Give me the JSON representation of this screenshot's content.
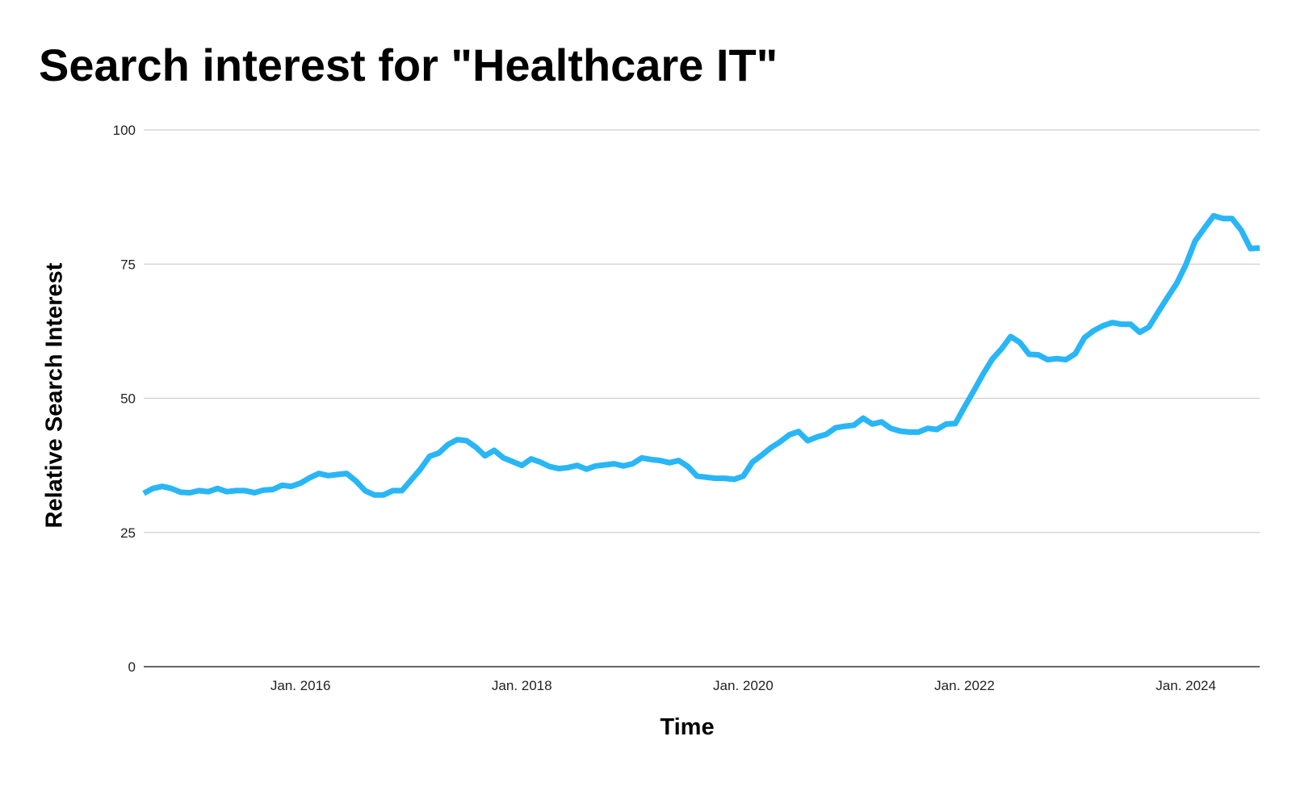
{
  "chart_data": {
    "type": "line",
    "title": "Search interest for \"Healthcare IT\"",
    "xlabel": "Time",
    "ylabel": "Relative Search Interest",
    "ylim": [
      0,
      100
    ],
    "yticks": [
      0,
      25,
      50,
      75,
      100
    ],
    "xlim": [
      "2014-08",
      "2024-09"
    ],
    "xticks": [
      {
        "date": "2016-01",
        "label": "Jan. 2016"
      },
      {
        "date": "2018-01",
        "label": "Jan. 2018"
      },
      {
        "date": "2020-01",
        "label": "Jan. 2020"
      },
      {
        "date": "2022-01",
        "label": "Jan. 2022"
      },
      {
        "date": "2024-01",
        "label": "Jan. 2024"
      }
    ],
    "grid": true,
    "color": "#29b6f6",
    "series": [
      {
        "x": [
          "2014-08",
          "2014-09",
          "2014-10",
          "2014-11",
          "2014-12",
          "2015-01",
          "2015-02",
          "2015-03",
          "2015-04",
          "2015-05",
          "2015-06",
          "2015-07",
          "2015-08",
          "2015-09",
          "2015-10",
          "2015-11",
          "2015-12",
          "2016-01",
          "2016-02",
          "2016-03",
          "2016-04",
          "2016-05",
          "2016-06",
          "2016-07",
          "2016-08",
          "2016-09",
          "2016-10",
          "2016-11",
          "2016-12",
          "2017-01",
          "2017-02",
          "2017-03",
          "2017-04",
          "2017-05",
          "2017-06",
          "2017-07",
          "2017-08",
          "2017-09",
          "2017-10",
          "2017-11",
          "2017-12",
          "2018-01",
          "2018-02",
          "2018-03",
          "2018-04",
          "2018-05",
          "2018-06",
          "2018-07",
          "2018-08",
          "2018-09",
          "2018-10",
          "2018-11",
          "2018-12",
          "2019-01",
          "2019-02",
          "2019-03",
          "2019-04",
          "2019-05",
          "2019-06",
          "2019-07",
          "2019-08",
          "2019-09",
          "2019-10",
          "2019-11",
          "2019-12",
          "2020-01",
          "2020-02",
          "2020-03",
          "2020-04",
          "2020-05",
          "2020-06",
          "2020-07",
          "2020-08",
          "2020-09",
          "2020-10",
          "2020-11",
          "2020-12",
          "2021-01",
          "2021-02",
          "2021-03",
          "2021-04",
          "2021-05",
          "2021-06",
          "2021-07",
          "2021-08",
          "2021-09",
          "2021-10",
          "2021-11",
          "2021-12",
          "2022-01",
          "2022-02",
          "2022-03",
          "2022-04",
          "2022-05",
          "2022-06",
          "2022-07",
          "2022-08",
          "2022-09",
          "2022-10",
          "2022-11",
          "2022-12",
          "2023-01",
          "2023-02",
          "2023-03",
          "2023-04",
          "2023-05",
          "2023-06",
          "2023-07",
          "2023-08",
          "2023-09",
          "2023-10",
          "2023-11",
          "2023-12",
          "2024-01",
          "2024-02",
          "2024-03",
          "2024-04",
          "2024-05",
          "2024-06",
          "2024-07",
          "2024-08",
          "2024-09"
        ],
        "values": [
          32.3,
          33.2,
          33.6,
          33.2,
          32.5,
          32.4,
          32.8,
          32.6,
          33.2,
          32.6,
          32.8,
          32.8,
          32.4,
          32.9,
          33.0,
          33.8,
          33.6,
          34.2,
          35.2,
          36.0,
          35.6,
          35.8,
          36.0,
          34.6,
          32.8,
          32.0,
          32.0,
          32.8,
          32.8,
          34.8,
          36.8,
          39.2,
          39.8,
          41.4,
          42.3,
          42.1,
          40.9,
          39.3,
          40.3,
          38.9,
          38.2,
          37.5,
          38.7,
          38.1,
          37.3,
          36.9,
          37.1,
          37.5,
          36.8,
          37.4,
          37.6,
          37.8,
          37.4,
          37.8,
          38.9,
          38.6,
          38.4,
          38.0,
          38.4,
          37.3,
          35.5,
          35.3,
          35.1,
          35.1,
          34.9,
          35.5,
          38.1,
          39.4,
          40.8,
          41.9,
          43.2,
          43.8,
          42.1,
          42.8,
          43.3,
          44.5,
          44.8,
          45.0,
          46.3,
          45.2,
          45.6,
          44.4,
          43.9,
          43.7,
          43.7,
          44.4,
          44.2,
          45.2,
          45.3,
          48.4,
          51.4,
          54.5,
          57.3,
          59.2,
          61.5,
          60.4,
          58.2,
          58.1,
          57.2,
          57.4,
          57.2,
          58.3,
          61.3,
          62.6,
          63.5,
          64.1,
          63.8,
          63.8,
          62.3,
          63.3,
          66.1,
          68.8,
          71.4,
          74.9,
          79.3,
          81.7,
          84.0,
          83.5,
          83.5,
          81.3,
          77.9,
          78.0
        ]
      }
    ]
  }
}
